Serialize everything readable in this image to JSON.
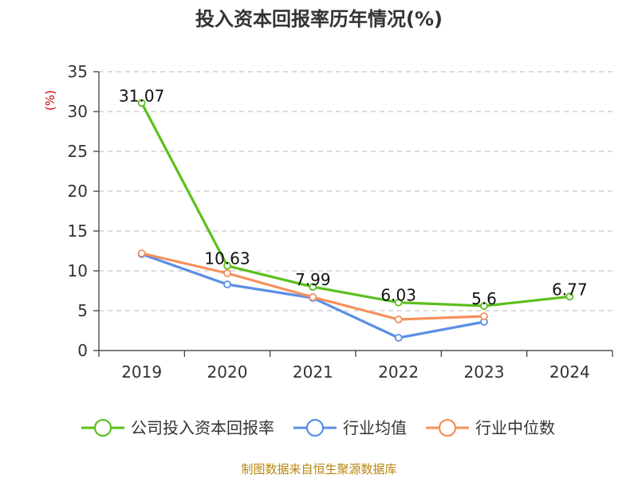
{
  "chart_data": {
    "type": "line",
    "title": "投入资本回报率历年情况(%)",
    "ylabel": "(%)",
    "xlabel": "",
    "categories": [
      "2019",
      "2020",
      "2021",
      "2022",
      "2023",
      "2024"
    ],
    "ylim": [
      0,
      35
    ],
    "yticks": [
      0,
      5,
      10,
      15,
      20,
      25,
      30,
      35
    ],
    "grid": true,
    "legend_position": "bottom",
    "series": [
      {
        "name": "公司投入资本回报率",
        "color": "#5cbf1e",
        "values": [
          31.07,
          10.63,
          7.99,
          6.03,
          5.6,
          6.77
        ],
        "labels": [
          "31.07",
          "10.63",
          "7.99",
          "6.03",
          "5.6",
          "6.77"
        ]
      },
      {
        "name": "行业均值",
        "color": "#5b8ee6",
        "values": [
          12.1,
          8.3,
          6.6,
          1.6,
          3.6,
          null
        ]
      },
      {
        "name": "行业中位数",
        "color": "#f5905b",
        "values": [
          12.2,
          9.7,
          6.7,
          3.9,
          4.3,
          null
        ]
      }
    ],
    "source": "制图数据来自恒生聚源数据库"
  }
}
